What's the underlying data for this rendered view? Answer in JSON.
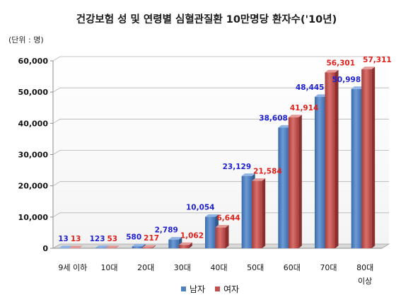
{
  "chart_data": {
    "type": "bar",
    "title": "건강보험 성 및 연령별 심혈관질환 10만명당 환자수('10년)",
    "unit_label": "(단위 : 명)",
    "categories": [
      "9세 이하",
      "10대",
      "20대",
      "30대",
      "40대",
      "50대",
      "60대",
      "70대",
      "80대 이상"
    ],
    "series": [
      {
        "name": "남자",
        "color": "#4f81bd",
        "label_color": "#1f1fcf",
        "values": [
          13,
          123,
          580,
          2789,
          10054,
          23129,
          38608,
          48445,
          50998
        ]
      },
      {
        "name": "여자",
        "color": "#c0504d",
        "label_color": "#e0201a",
        "values": [
          13,
          53,
          217,
          1062,
          6644,
          21584,
          41914,
          56301,
          57311
        ]
      }
    ],
    "data_labels": [
      [
        "13",
        "123",
        "580",
        "2,789",
        "10,054",
        "23,129",
        "38,608",
        "48,445",
        "50,998"
      ],
      [
        "13",
        "53",
        "217",
        "1,062",
        "6,644",
        "21,584",
        "41,914",
        "56,301",
        "57,311"
      ]
    ],
    "y_ticks": [
      "0",
      "10,000",
      "20,000",
      "30,000",
      "40,000",
      "50,000",
      "60,000"
    ],
    "ylim": [
      0,
      60000
    ],
    "grid": true,
    "legend_position": "bottom-center",
    "style": "3d-clustered-column"
  }
}
